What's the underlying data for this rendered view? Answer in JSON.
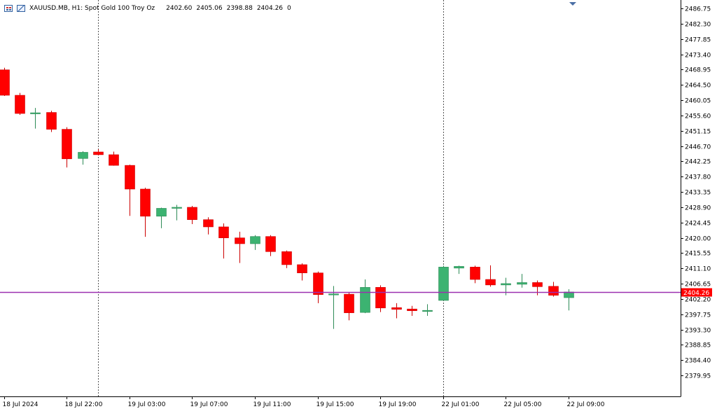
{
  "header": {
    "symbol_info": "XAUUSD.MB, H1:  Spot Gold 100 Troy Oz",
    "open": "2402.60",
    "high": "2405.06",
    "low": "2398.88",
    "close": "2404.26",
    "volume": "0",
    "icons": [
      "chart-grid-icon",
      "chart-graph-icon"
    ]
  },
  "price_tag": "2404.26",
  "colors": {
    "bull": "#3cb371",
    "bear": "#ff0000",
    "wick_bull": "#2e8b57",
    "wick_bear": "#cc0000",
    "price_line": "#9b30b0",
    "tag_bg": "#ff0000",
    "tag_text": "#ffffff",
    "axis": "#000000",
    "separator": "#555555",
    "shift_marker": "#4a6fa5"
  },
  "chart_data": {
    "type": "candlestick",
    "symbol": "XAUUSD.MB",
    "timeframe": "H1",
    "grid": false,
    "ylim": [
      2375.5,
      2488.0
    ],
    "y_ticks": [
      2486.75,
      2482.3,
      2477.85,
      2473.4,
      2468.95,
      2464.5,
      2460.05,
      2455.6,
      2451.15,
      2446.7,
      2442.25,
      2437.8,
      2433.35,
      2428.9,
      2424.45,
      2420.0,
      2415.55,
      2411.1,
      2406.65,
      2402.2,
      2397.75,
      2393.3,
      2388.85,
      2384.4,
      2379.95
    ],
    "y_tick_labels": [
      "2486.75",
      "2482.30",
      "2477.85",
      "2473.40",
      "2468.95",
      "2464.50",
      "2460.05",
      "2455.60",
      "2451.15",
      "2446.70",
      "2442.25",
      "2437.80",
      "2433.35",
      "2428.90",
      "2424.45",
      "2420.00",
      "2415.55",
      "2411.10",
      "2406.65",
      "2402.20",
      "2397.75",
      "2393.30",
      "2388.85",
      "2384.40",
      "2379.95"
    ],
    "x_labels": [
      {
        "i": 0,
        "label": "18 Jul 2024"
      },
      {
        "i": 4,
        "label": "18 Jul 22:00"
      },
      {
        "i": 8,
        "label": "19 Jul 03:00"
      },
      {
        "i": 12,
        "label": "19 Jul 07:00"
      },
      {
        "i": 16,
        "label": "19 Jul 11:00"
      },
      {
        "i": 20,
        "label": "19 Jul 15:00"
      },
      {
        "i": 24,
        "label": "19 Jul 19:00"
      },
      {
        "i": 28,
        "label": "22 Jul 01:00"
      },
      {
        "i": 32,
        "label": "22 Jul 05:00"
      },
      {
        "i": 36,
        "label": "22 Jul 09:00"
      }
    ],
    "separators_at": [
      6,
      28
    ],
    "current_price": 2404.26,
    "candles": [
      {
        "o": 2468.9,
        "h": 2469.5,
        "l": 2461.3,
        "c": 2461.5
      },
      {
        "o": 2461.5,
        "h": 2462.2,
        "l": 2455.8,
        "c": 2456.2
      },
      {
        "o": 2456.2,
        "h": 2457.8,
        "l": 2451.8,
        "c": 2456.4
      },
      {
        "o": 2456.5,
        "h": 2457.0,
        "l": 2450.8,
        "c": 2451.6
      },
      {
        "o": 2451.6,
        "h": 2452.2,
        "l": 2440.5,
        "c": 2443.0
      },
      {
        "o": 2443.1,
        "h": 2445.2,
        "l": 2441.3,
        "c": 2444.9
      },
      {
        "o": 2445.0,
        "h": 2445.8,
        "l": 2444.0,
        "c": 2444.2
      },
      {
        "o": 2444.2,
        "h": 2445.1,
        "l": 2441.0,
        "c": 2441.1
      },
      {
        "o": 2441.1,
        "h": 2441.3,
        "l": 2426.4,
        "c": 2434.2
      },
      {
        "o": 2434.2,
        "h": 2434.6,
        "l": 2420.3,
        "c": 2426.3
      },
      {
        "o": 2426.3,
        "h": 2428.8,
        "l": 2422.8,
        "c": 2428.6
      },
      {
        "o": 2428.6,
        "h": 2429.6,
        "l": 2425.1,
        "c": 2428.9
      },
      {
        "o": 2428.9,
        "h": 2429.3,
        "l": 2424.0,
        "c": 2425.3
      },
      {
        "o": 2425.3,
        "h": 2426.0,
        "l": 2421.0,
        "c": 2423.2
      },
      {
        "o": 2423.2,
        "h": 2424.2,
        "l": 2414.0,
        "c": 2420.0
      },
      {
        "o": 2420.0,
        "h": 2421.8,
        "l": 2412.7,
        "c": 2418.3
      },
      {
        "o": 2418.3,
        "h": 2420.8,
        "l": 2416.5,
        "c": 2420.4
      },
      {
        "o": 2420.4,
        "h": 2420.8,
        "l": 2414.7,
        "c": 2416.0
      },
      {
        "o": 2416.0,
        "h": 2416.3,
        "l": 2411.2,
        "c": 2412.2
      },
      {
        "o": 2412.2,
        "h": 2412.6,
        "l": 2407.6,
        "c": 2409.8
      },
      {
        "o": 2409.8,
        "h": 2410.2,
        "l": 2401.0,
        "c": 2403.5
      },
      {
        "o": 2403.5,
        "h": 2406.0,
        "l": 2393.5,
        "c": 2403.7
      },
      {
        "o": 2403.6,
        "h": 2404.2,
        "l": 2396.0,
        "c": 2398.2
      },
      {
        "o": 2398.3,
        "h": 2407.9,
        "l": 2398.1,
        "c": 2405.6
      },
      {
        "o": 2405.6,
        "h": 2406.2,
        "l": 2398.4,
        "c": 2399.6
      },
      {
        "o": 2399.7,
        "h": 2401.0,
        "l": 2396.6,
        "c": 2399.2
      },
      {
        "o": 2399.3,
        "h": 2400.2,
        "l": 2397.3,
        "c": 2398.8
      },
      {
        "o": 2398.9,
        "h": 2400.7,
        "l": 2397.3,
        "c": 2398.9
      },
      {
        "o": 2401.8,
        "h": 2411.9,
        "l": 2401.8,
        "c": 2411.5
      },
      {
        "o": 2411.2,
        "h": 2411.9,
        "l": 2409.5,
        "c": 2411.7
      },
      {
        "o": 2411.5,
        "h": 2411.9,
        "l": 2406.8,
        "c": 2407.9
      },
      {
        "o": 2407.9,
        "h": 2412.0,
        "l": 2405.8,
        "c": 2406.3
      },
      {
        "o": 2406.3,
        "h": 2408.4,
        "l": 2403.3,
        "c": 2406.7
      },
      {
        "o": 2406.5,
        "h": 2409.5,
        "l": 2405.5,
        "c": 2407.0
      },
      {
        "o": 2407.0,
        "h": 2407.6,
        "l": 2403.3,
        "c": 2405.8
      },
      {
        "o": 2405.9,
        "h": 2407.2,
        "l": 2402.9,
        "c": 2403.3
      },
      {
        "o": 2402.6,
        "h": 2405.06,
        "l": 2398.88,
        "c": 2404.26
      }
    ]
  }
}
